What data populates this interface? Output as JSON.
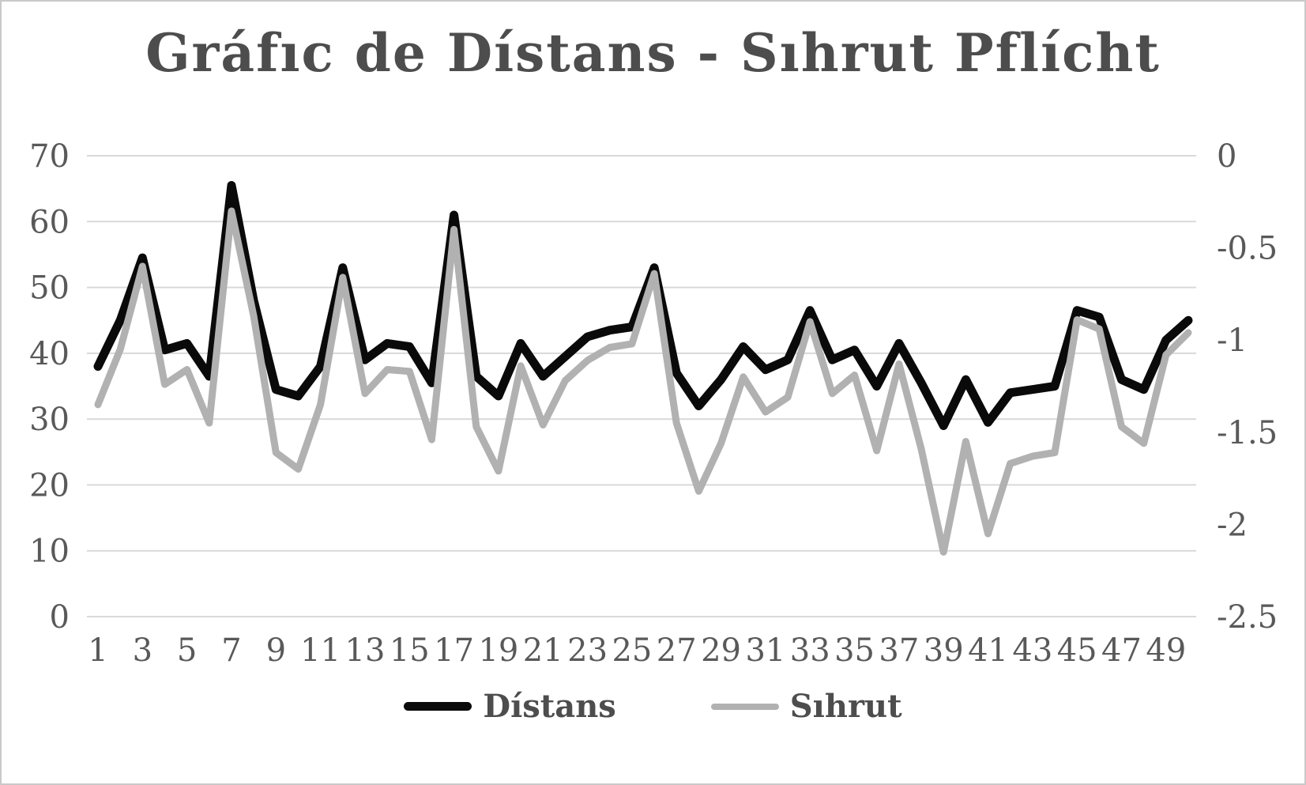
{
  "page": {
    "background": "#ffffff",
    "border_color": "#c9c9c9"
  },
  "colors": {
    "title_text": "#4d4d4d",
    "axis_text": "#595959",
    "gridline": "#d9d9d9",
    "distans_line": "#0a0a0a",
    "sihrut_line": "#b1b1b1"
  },
  "chart_data": {
    "type": "line",
    "title": "Gráfıc de Dístans - Sıhrut Pflícht",
    "grid": true,
    "legend_position": "bottom",
    "x_axis": {
      "tick_labels": [
        1,
        3,
        5,
        7,
        9,
        11,
        13,
        15,
        17,
        19,
        21,
        23,
        25,
        27,
        29,
        31,
        33,
        35,
        37,
        39,
        41,
        43,
        45,
        47,
        49
      ],
      "points": 50
    },
    "left_axis": {
      "min": 0,
      "max": 70,
      "ticks": [
        70,
        60,
        50,
        40,
        30,
        20,
        10,
        0
      ]
    },
    "right_axis": {
      "min": -2.5,
      "max": 0,
      "ticks": [
        0,
        -0.5,
        -1,
        -1.5,
        -2,
        -2.5
      ]
    },
    "series": [
      {
        "name": "Dístans",
        "axis": "left",
        "color": "#0a0a0a",
        "stroke_width": 11,
        "values": [
          38,
          45,
          54.5,
          40.5,
          41.5,
          36.5,
          65.5,
          48,
          34.5,
          33.5,
          38,
          53,
          39,
          41.5,
          41,
          35.5,
          61,
          36.5,
          33.5,
          41.5,
          36.5,
          39.5,
          42.5,
          43.5,
          44,
          53,
          37,
          32,
          36,
          41,
          37.5,
          39,
          46.5,
          39,
          40.5,
          35,
          41.5,
          35.5,
          29,
          36,
          29.5,
          34,
          34.5,
          35,
          46.5,
          45.5,
          36,
          34.5,
          42,
          45
        ]
      },
      {
        "name": "Sıhrut",
        "axis": "right",
        "color": "#b1b1b1",
        "stroke_width": 9,
        "values": [
          -1.35,
          -1.05,
          -0.6,
          -1.24,
          -1.16,
          -1.45,
          -0.3,
          -0.87,
          -1.61,
          -1.7,
          -1.35,
          -0.66,
          -1.29,
          -1.16,
          -1.17,
          -1.54,
          -0.4,
          -1.47,
          -1.71,
          -1.14,
          -1.46,
          -1.22,
          -1.11,
          -1.04,
          -1.02,
          -0.64,
          -1.45,
          -1.82,
          -1.56,
          -1.2,
          -1.39,
          -1.31,
          -0.9,
          -1.29,
          -1.19,
          -1.6,
          -1.13,
          -1.59,
          -2.15,
          -1.55,
          -2.05,
          -1.67,
          -1.63,
          -1.61,
          -0.89,
          -0.94,
          -1.47,
          -1.56,
          -1.08,
          -0.96
        ]
      }
    ]
  }
}
